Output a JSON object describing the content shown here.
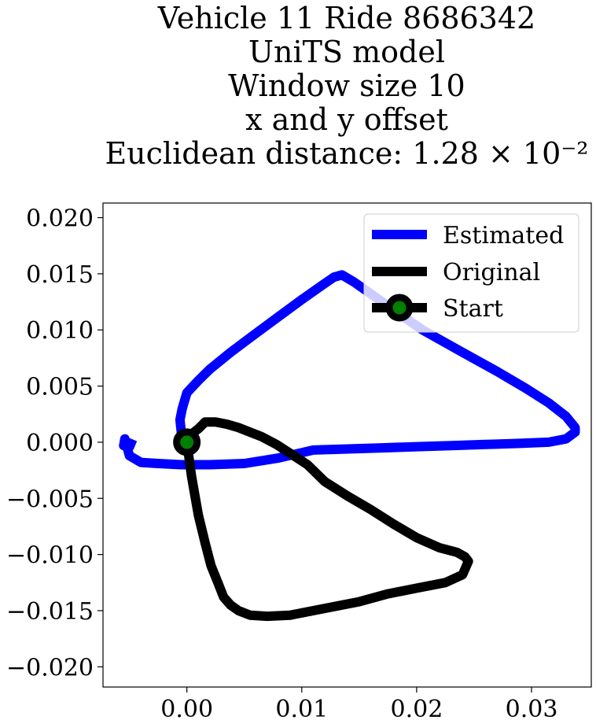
{
  "chart_data": {
    "type": "line",
    "title": [
      "Vehicle 11 Ride 8686342",
      "UniTS model",
      "Window size 10",
      "x and y offset",
      "Euclidean distance: 1.28 × 10⁻²"
    ],
    "xlabel": "",
    "ylabel": "",
    "xlim": [
      -0.0073,
      0.0352
    ],
    "ylim": [
      -0.0218,
      0.0213
    ],
    "xticks": [
      0.0,
      0.01,
      0.02,
      0.03
    ],
    "xtick_labels": [
      "0.00",
      "0.01",
      "0.02",
      "0.03"
    ],
    "yticks": [
      0.02,
      0.015,
      0.01,
      0.005,
      0.0,
      -0.005,
      -0.01,
      -0.015,
      -0.02
    ],
    "ytick_labels": [
      "0.020",
      "0.015",
      "0.010",
      "0.005",
      "0.000",
      "−0.005",
      "−0.010",
      "−0.015",
      "−0.020"
    ],
    "grid": false,
    "legend_position": "top-right",
    "series": [
      {
        "name": "Estimated",
        "color": "#0000ff",
        "x": [
          -0.0045,
          -0.0052,
          -0.0055,
          -0.0054,
          -0.005,
          -0.004,
          -0.0025,
          -0.0005,
          0.002,
          0.005,
          0.008,
          0.011,
          0.014,
          0.017,
          0.02,
          0.023,
          0.026,
          0.029,
          0.0315,
          0.033,
          0.0338,
          0.0338,
          0.033,
          0.0315,
          0.0295,
          0.027,
          0.024,
          0.0205,
          0.017,
          0.0145,
          0.0135,
          0.0128,
          0.0118,
          0.01,
          0.008,
          0.0055,
          0.0038,
          0.002,
          0.001,
          0.0,
          -0.0004,
          -0.0006,
          -0.0005,
          -0.0004
        ],
        "y": [
          -0.0003,
          0.0,
          -0.0003,
          0.0003,
          -0.0012,
          -0.0018,
          -0.0019,
          -0.002,
          -0.002,
          -0.0019,
          -0.0014,
          -0.0007,
          -0.0006,
          -0.0005,
          -0.0004,
          -0.0003,
          -0.0002,
          -0.0001,
          0.0,
          0.0003,
          0.0009,
          0.0013,
          0.0023,
          0.0035,
          0.0048,
          0.0063,
          0.008,
          0.01,
          0.0125,
          0.0143,
          0.0149,
          0.0147,
          0.014,
          0.0127,
          0.0112,
          0.0093,
          0.008,
          0.0065,
          0.0055,
          0.0044,
          0.003,
          0.002,
          0.001,
          -0.0001
        ]
      },
      {
        "name": "Original",
        "color": "#000000",
        "x": [
          0.0,
          0.0005,
          0.001,
          0.0016,
          0.0025,
          0.0035,
          0.0045,
          0.0055,
          0.0065,
          0.0078,
          0.009,
          0.0105,
          0.012,
          0.014,
          0.016,
          0.018,
          0.02,
          0.022,
          0.0235,
          0.0242,
          0.0245,
          0.024,
          0.0225,
          0.02,
          0.0175,
          0.015,
          0.012,
          0.009,
          0.007,
          0.0055,
          0.0045,
          0.0038,
          0.0032,
          0.0027,
          0.0021,
          0.0016,
          0.001,
          0.0004,
          0.0
        ],
        "y": [
          0.0,
          0.0008,
          0.0012,
          0.0018,
          0.0018,
          0.0016,
          0.0013,
          0.0009,
          0.0005,
          -0.0002,
          -0.001,
          -0.002,
          -0.0035,
          -0.0048,
          -0.006,
          -0.0073,
          -0.0085,
          -0.0094,
          -0.0098,
          -0.0102,
          -0.0106,
          -0.0118,
          -0.0125,
          -0.013,
          -0.0135,
          -0.0142,
          -0.0148,
          -0.0154,
          -0.0155,
          -0.0154,
          -0.015,
          -0.0145,
          -0.0138,
          -0.0125,
          -0.011,
          -0.009,
          -0.0065,
          -0.003,
          0.0
        ]
      }
    ],
    "start_marker": {
      "name": "Start",
      "x": 0.0,
      "y": 0.0,
      "color": "#000000",
      "fill": "#008000"
    }
  }
}
